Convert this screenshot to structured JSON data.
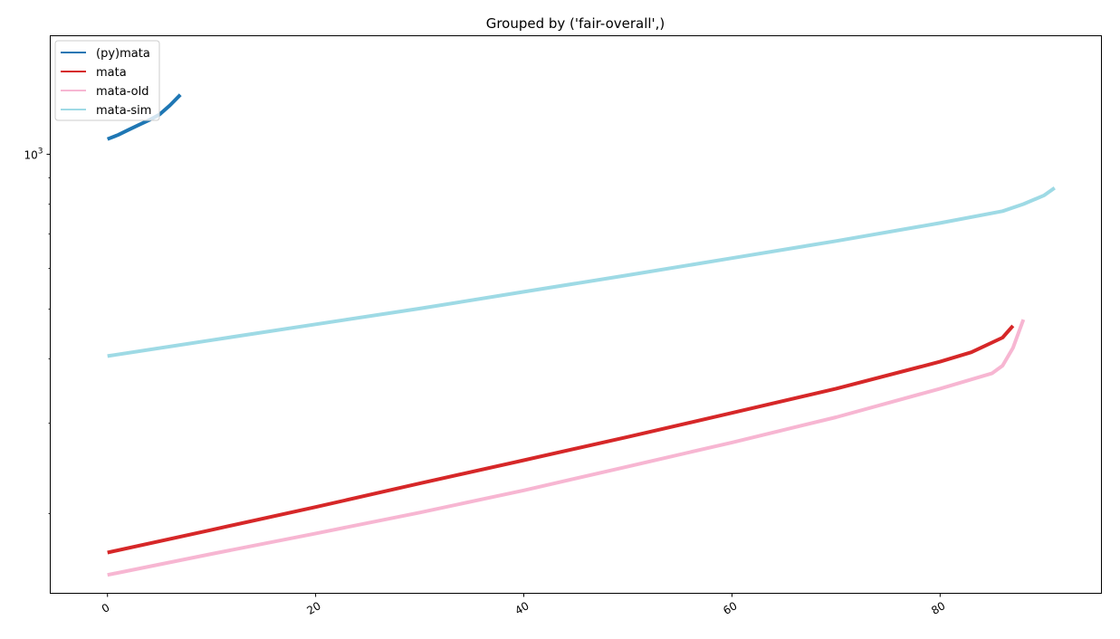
{
  "chart_data": {
    "type": "line",
    "title": "Grouped by ('fair-overall',)",
    "xlabel": "",
    "ylabel": "",
    "y_scale": "log",
    "xlim": [
      -5.5,
      95.5
    ],
    "ylim": [
      140,
      1700
    ],
    "x_ticks": [
      0,
      20,
      40,
      60,
      80
    ],
    "x_tick_labels": [
      "0",
      "20",
      "40",
      "60",
      "80"
    ],
    "y_ticks": [
      1000
    ],
    "y_tick_labels": [
      "10",
      "3"
    ],
    "grid": false,
    "legend_position": "top-left",
    "series": [
      {
        "name": "(py)mata",
        "color": "#1f77b4",
        "x": [
          0,
          1,
          2,
          3,
          4,
          5,
          6,
          7
        ],
        "y": [
          1070,
          1090,
          1115,
          1140,
          1165,
          1195,
          1245,
          1305
        ]
      },
      {
        "name": "mata",
        "color": "#d62728",
        "x": [
          0,
          10,
          20,
          30,
          40,
          50,
          60,
          70,
          80,
          83,
          86,
          87
        ],
        "y": [
          168,
          186,
          206,
          229,
          254,
          282,
          314,
          350,
          395,
          412,
          440,
          464
        ]
      },
      {
        "name": "mata-old",
        "color": "#f7b6d2",
        "x": [
          0,
          10,
          20,
          30,
          40,
          50,
          60,
          70,
          80,
          85,
          86,
          87,
          88
        ],
        "y": [
          152,
          167,
          183,
          201,
          222,
          247,
          275,
          308,
          350,
          375,
          388,
          420,
          477
        ]
      },
      {
        "name": "mata-sim",
        "color": "#9edae5",
        "x": [
          0,
          10,
          20,
          30,
          40,
          50,
          60,
          70,
          80,
          86,
          88,
          90,
          91
        ],
        "y": [
          405,
          435,
          467,
          501,
          540,
          582,
          628,
          678,
          735,
          775,
          800,
          832,
          860
        ]
      }
    ]
  }
}
